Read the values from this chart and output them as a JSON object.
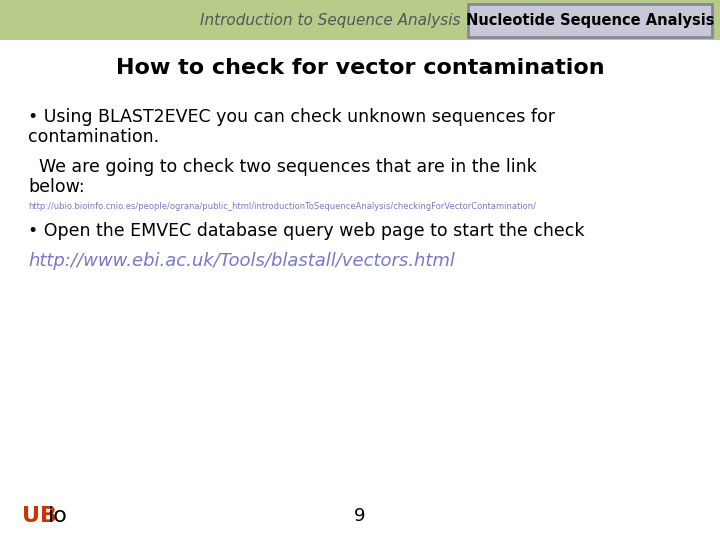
{
  "header_bg_color": "#b8cc8a",
  "header_text": "Introduction to Sequence Analysis",
  "header_text_color": "#555555",
  "badge_text": "Nucleotide Sequence Analysis",
  "badge_bg_color": "#c8c8d8",
  "badge_border_color": "#888899",
  "badge_text_color": "#000000",
  "slide_bg_color": "#ffffff",
  "title_text": "How to check for vector contamination",
  "title_color": "#000000",
  "bullet1_line1": "• Using BLAST2EVEC you can check unknown sequences for",
  "bullet1_line2": "contamination.",
  "bullet2_line1": "  We are going to check two sequences that are in the link",
  "bullet2_line2": "below:",
  "small_link": "http://ubio.bioinfo.cnio.es/people/ograna/public_html/introductionToSequenceAnalysis/checkingForVectorContamination/",
  "bullet3": "• Open the EMVEC database query web page to start the check",
  "big_link": "http://www.ebi.ac.uk/Tools/blastall/vectors.html",
  "big_link_color": "#7777cc",
  "small_link_color": "#7777cc",
  "footer_UB_color": "#cc3300",
  "footer_io_color": "#000000",
  "footer_page": "9",
  "body_text_color": "#000000",
  "body_fontsize": 12.5,
  "title_fontsize": 16,
  "header_fontsize": 11,
  "badge_fontsize": 10.5
}
